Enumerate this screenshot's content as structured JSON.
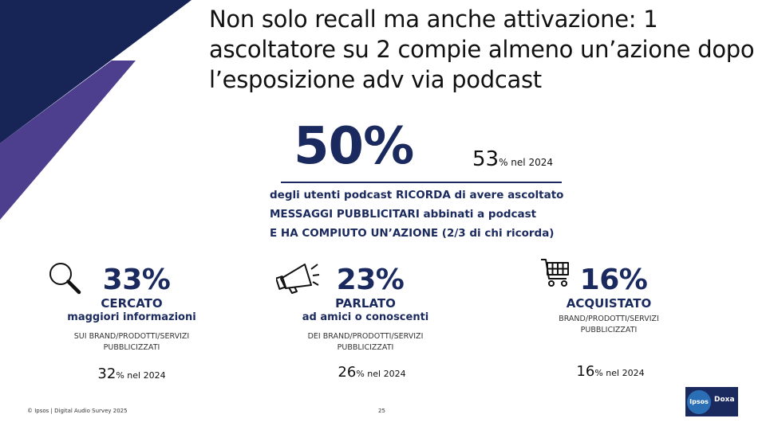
{
  "title": "Non solo recall ma anche attivazione: 1 ascoltatore su 2 compie almeno un’azione dopo l’esposizione adv via podcast",
  "headline": {
    "value": "50%",
    "prev_value": "53",
    "prev_suffix": "% nel 2024",
    "desc": [
      "degli utenti podcast RICORDA di avere ascoltato",
      "MESSAGGI PUBBLICITARI abbinati a podcast",
      "E HA COMPIUTO UN’AZIONE (2/3 di chi ricorda)"
    ]
  },
  "stats": [
    {
      "value": "33%",
      "action": "CERCATO",
      "sub": "maggiori informazioni",
      "note_1": "SUI BRAND/PRODOTTI/SERVIZI",
      "note_2": "PUBBLICIZZATI",
      "prev_value": "32",
      "prev_suffix": "% nel 2024",
      "icon": "magnifier-icon"
    },
    {
      "value": "23%",
      "action": "PARLATO",
      "sub": "ad amici o conoscenti",
      "note_1": "DEI BRAND/PRODOTTI/SERVIZI",
      "note_2": "PUBBLICIZZATI",
      "prev_value": "26",
      "prev_suffix": "% nel 2024",
      "icon": "megaphone-icon"
    },
    {
      "value": "16%",
      "action": "ACQUISTATO",
      "sub": "",
      "note_1": "BRAND/PRODOTTI/SERVIZI",
      "note_2": "PUBBLICIZZATI",
      "prev_value": "16",
      "prev_suffix": "% nel 2024",
      "icon": "shopping-cart-icon"
    }
  ],
  "footer": {
    "source": "© Ipsos | Digital Audio Survey 2025",
    "page_number": "25"
  },
  "logo": {
    "ipsos": "Ipsos",
    "doxa": "Doxa"
  },
  "colors": {
    "navy": "#1b2a5e",
    "dark_navy": "#162456",
    "purple": "#4d3f8e"
  }
}
